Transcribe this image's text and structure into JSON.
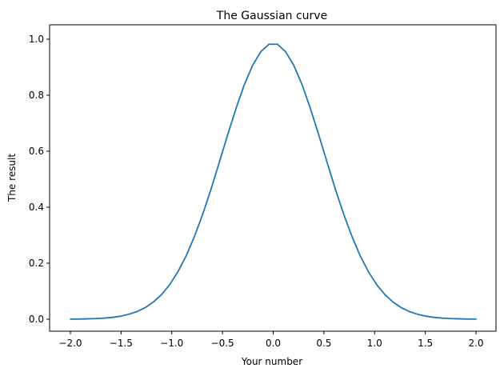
{
  "chart_data": {
    "type": "line",
    "title": "The Gaussian curve",
    "xlabel": "Your number",
    "ylabel": "The result",
    "xlim": [
      -2.0,
      2.0
    ],
    "ylim": [
      0.0,
      1.0
    ],
    "grid": false,
    "x_ticks": [
      "−2.0",
      "−1.5",
      "−1.0",
      "−0.5",
      "0.0",
      "0.5",
      "1.0",
      "1.5",
      "2.0"
    ],
    "x_tick_values": [
      -2.0,
      -1.5,
      -1.0,
      -0.5,
      0.0,
      0.5,
      1.0,
      1.5,
      2.0
    ],
    "y_ticks": [
      "0.0",
      "0.2",
      "0.4",
      "0.6",
      "0.8",
      "1.0"
    ],
    "y_tick_values": [
      0.0,
      0.2,
      0.4,
      0.6,
      0.8,
      1.0
    ],
    "series": [
      {
        "color": "#1f77b4",
        "x": [
          -2.0,
          -1.918,
          -1.837,
          -1.755,
          -1.673,
          -1.592,
          -1.51,
          -1.429,
          -1.347,
          -1.265,
          -1.184,
          -1.102,
          -1.02,
          -0.939,
          -0.857,
          -0.776,
          -0.694,
          -0.612,
          -0.531,
          -0.449,
          -0.367,
          -0.286,
          -0.204,
          -0.122,
          -0.041,
          0.041,
          0.122,
          0.204,
          0.286,
          0.367,
          0.449,
          0.531,
          0.612,
          0.694,
          0.776,
          0.857,
          0.939,
          1.02,
          1.102,
          1.184,
          1.265,
          1.347,
          1.429,
          1.51,
          1.592,
          1.673,
          1.755,
          1.837,
          1.918,
          2.0
        ],
        "y": [
          0.0003,
          0.0006,
          0.0012,
          0.0021,
          0.0037,
          0.0063,
          0.0105,
          0.017,
          0.0267,
          0.0408,
          0.0606,
          0.0877,
          0.1237,
          0.1698,
          0.2272,
          0.2961,
          0.3762,
          0.4656,
          0.5611,
          0.6585,
          0.7522,
          0.8365,
          0.9058,
          0.9555,
          0.9822,
          0.9822,
          0.9555,
          0.9058,
          0.8365,
          0.7522,
          0.6585,
          0.5611,
          0.4656,
          0.3762,
          0.2961,
          0.2272,
          0.1698,
          0.1237,
          0.0877,
          0.0606,
          0.0408,
          0.0267,
          0.017,
          0.0105,
          0.0063,
          0.0037,
          0.0021,
          0.0012,
          0.0006,
          0.0003
        ]
      }
    ]
  }
}
